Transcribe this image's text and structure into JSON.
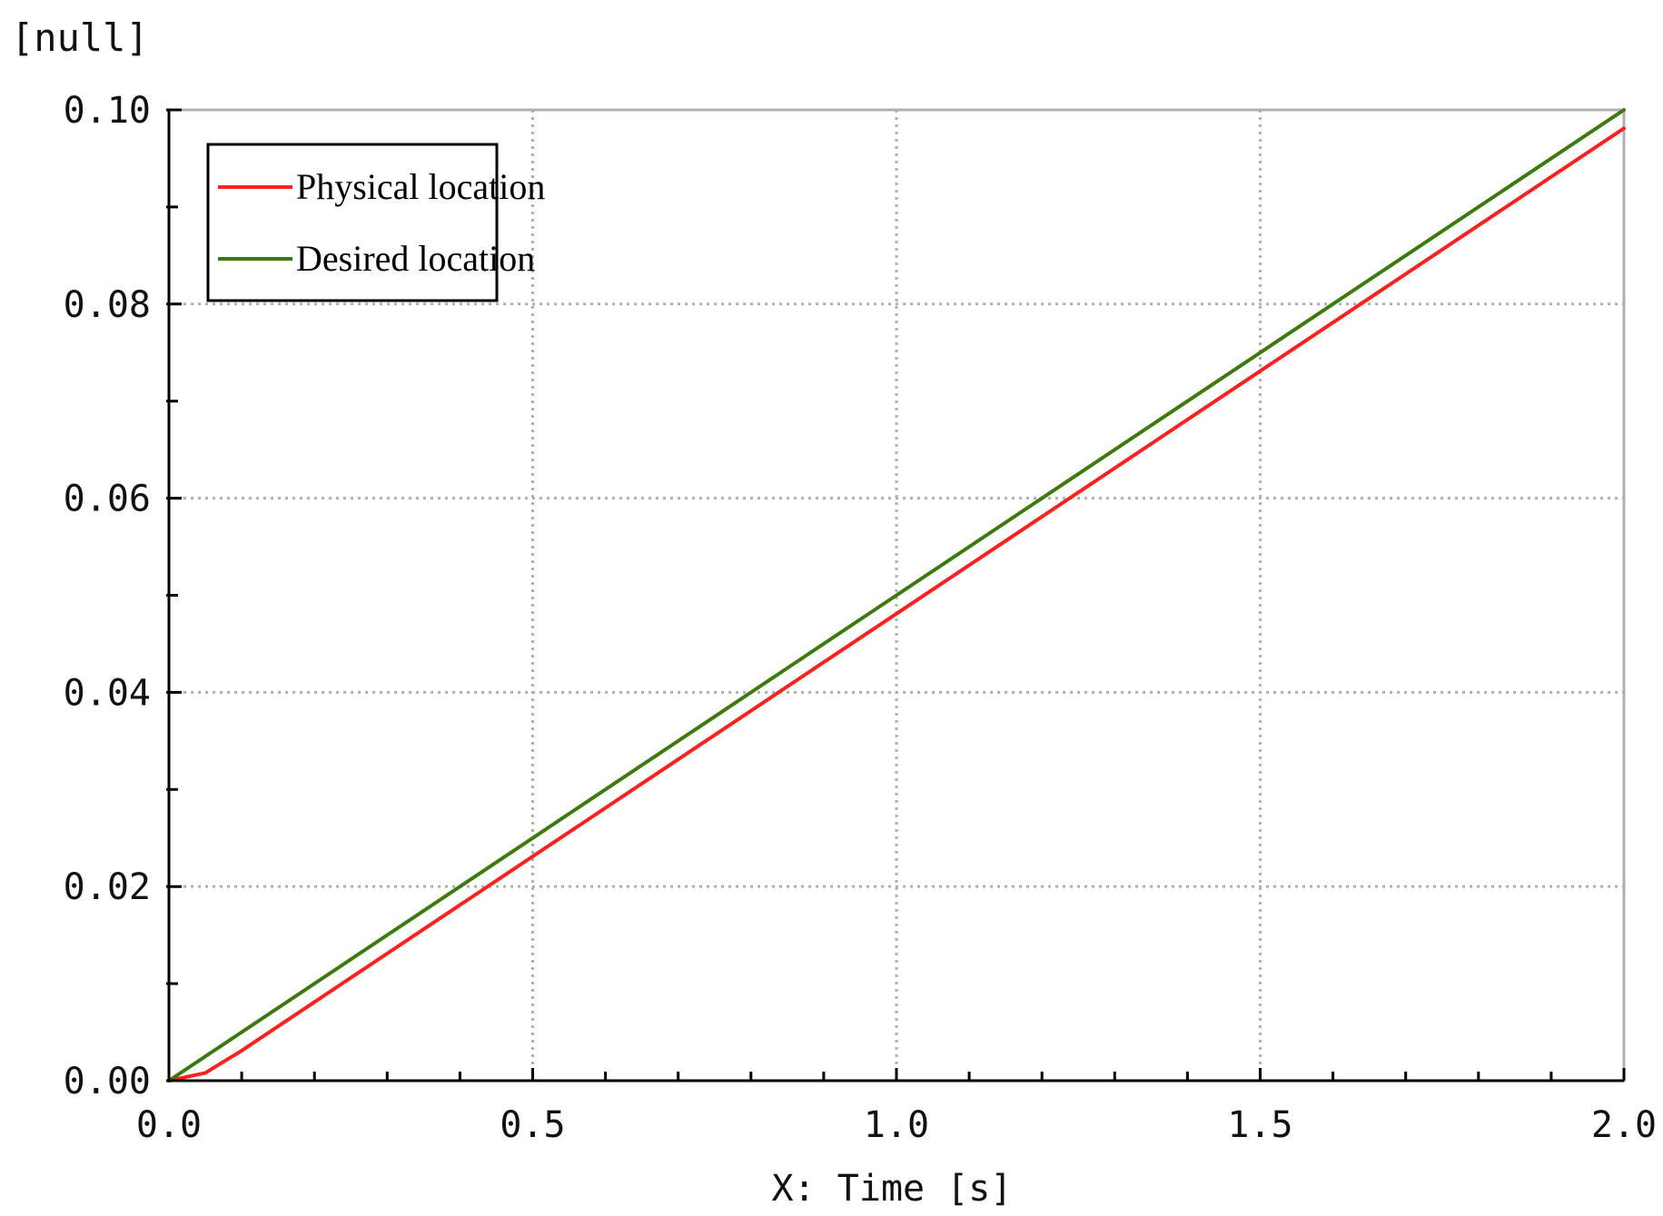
{
  "chart_data": {
    "type": "line",
    "unit_label": "[null]",
    "xlabel": "X: Time [s]",
    "ylabel": "",
    "xlim": [
      0.0,
      2.0
    ],
    "ylim": [
      0.0,
      0.1
    ],
    "x_ticks": [
      0.0,
      0.5,
      1.0,
      1.5,
      2.0
    ],
    "x_tick_labels": [
      "0.0",
      "0.5",
      "1.0",
      "1.5",
      "2.0"
    ],
    "y_ticks": [
      0.0,
      0.02,
      0.04,
      0.06,
      0.08,
      0.1
    ],
    "y_tick_labels": [
      "0.00",
      "0.02",
      "0.04",
      "0.06",
      "0.08",
      "0.10"
    ],
    "x_minor_step": 0.1,
    "y_minor_step": 0.01,
    "grid": true,
    "legend_position": "top-left",
    "series": [
      {
        "name": "Physical location",
        "color": "#ff2020",
        "points": [
          [
            0.0,
            0.0
          ],
          [
            0.05,
            0.0008
          ],
          [
            0.1,
            0.0031
          ],
          [
            0.2,
            0.0081
          ],
          [
            0.3,
            0.0131
          ],
          [
            0.5,
            0.0231
          ],
          [
            0.75,
            0.0356
          ],
          [
            1.0,
            0.0481
          ],
          [
            1.25,
            0.0606
          ],
          [
            1.5,
            0.0731
          ],
          [
            1.75,
            0.0856
          ],
          [
            2.0,
            0.0981
          ]
        ]
      },
      {
        "name": "Desired location",
        "color": "#3a7a10",
        "points": [
          [
            0.0,
            0.0
          ],
          [
            0.5,
            0.025
          ],
          [
            1.0,
            0.05
          ],
          [
            1.5,
            0.075
          ],
          [
            2.0,
            0.1
          ]
        ]
      }
    ]
  }
}
